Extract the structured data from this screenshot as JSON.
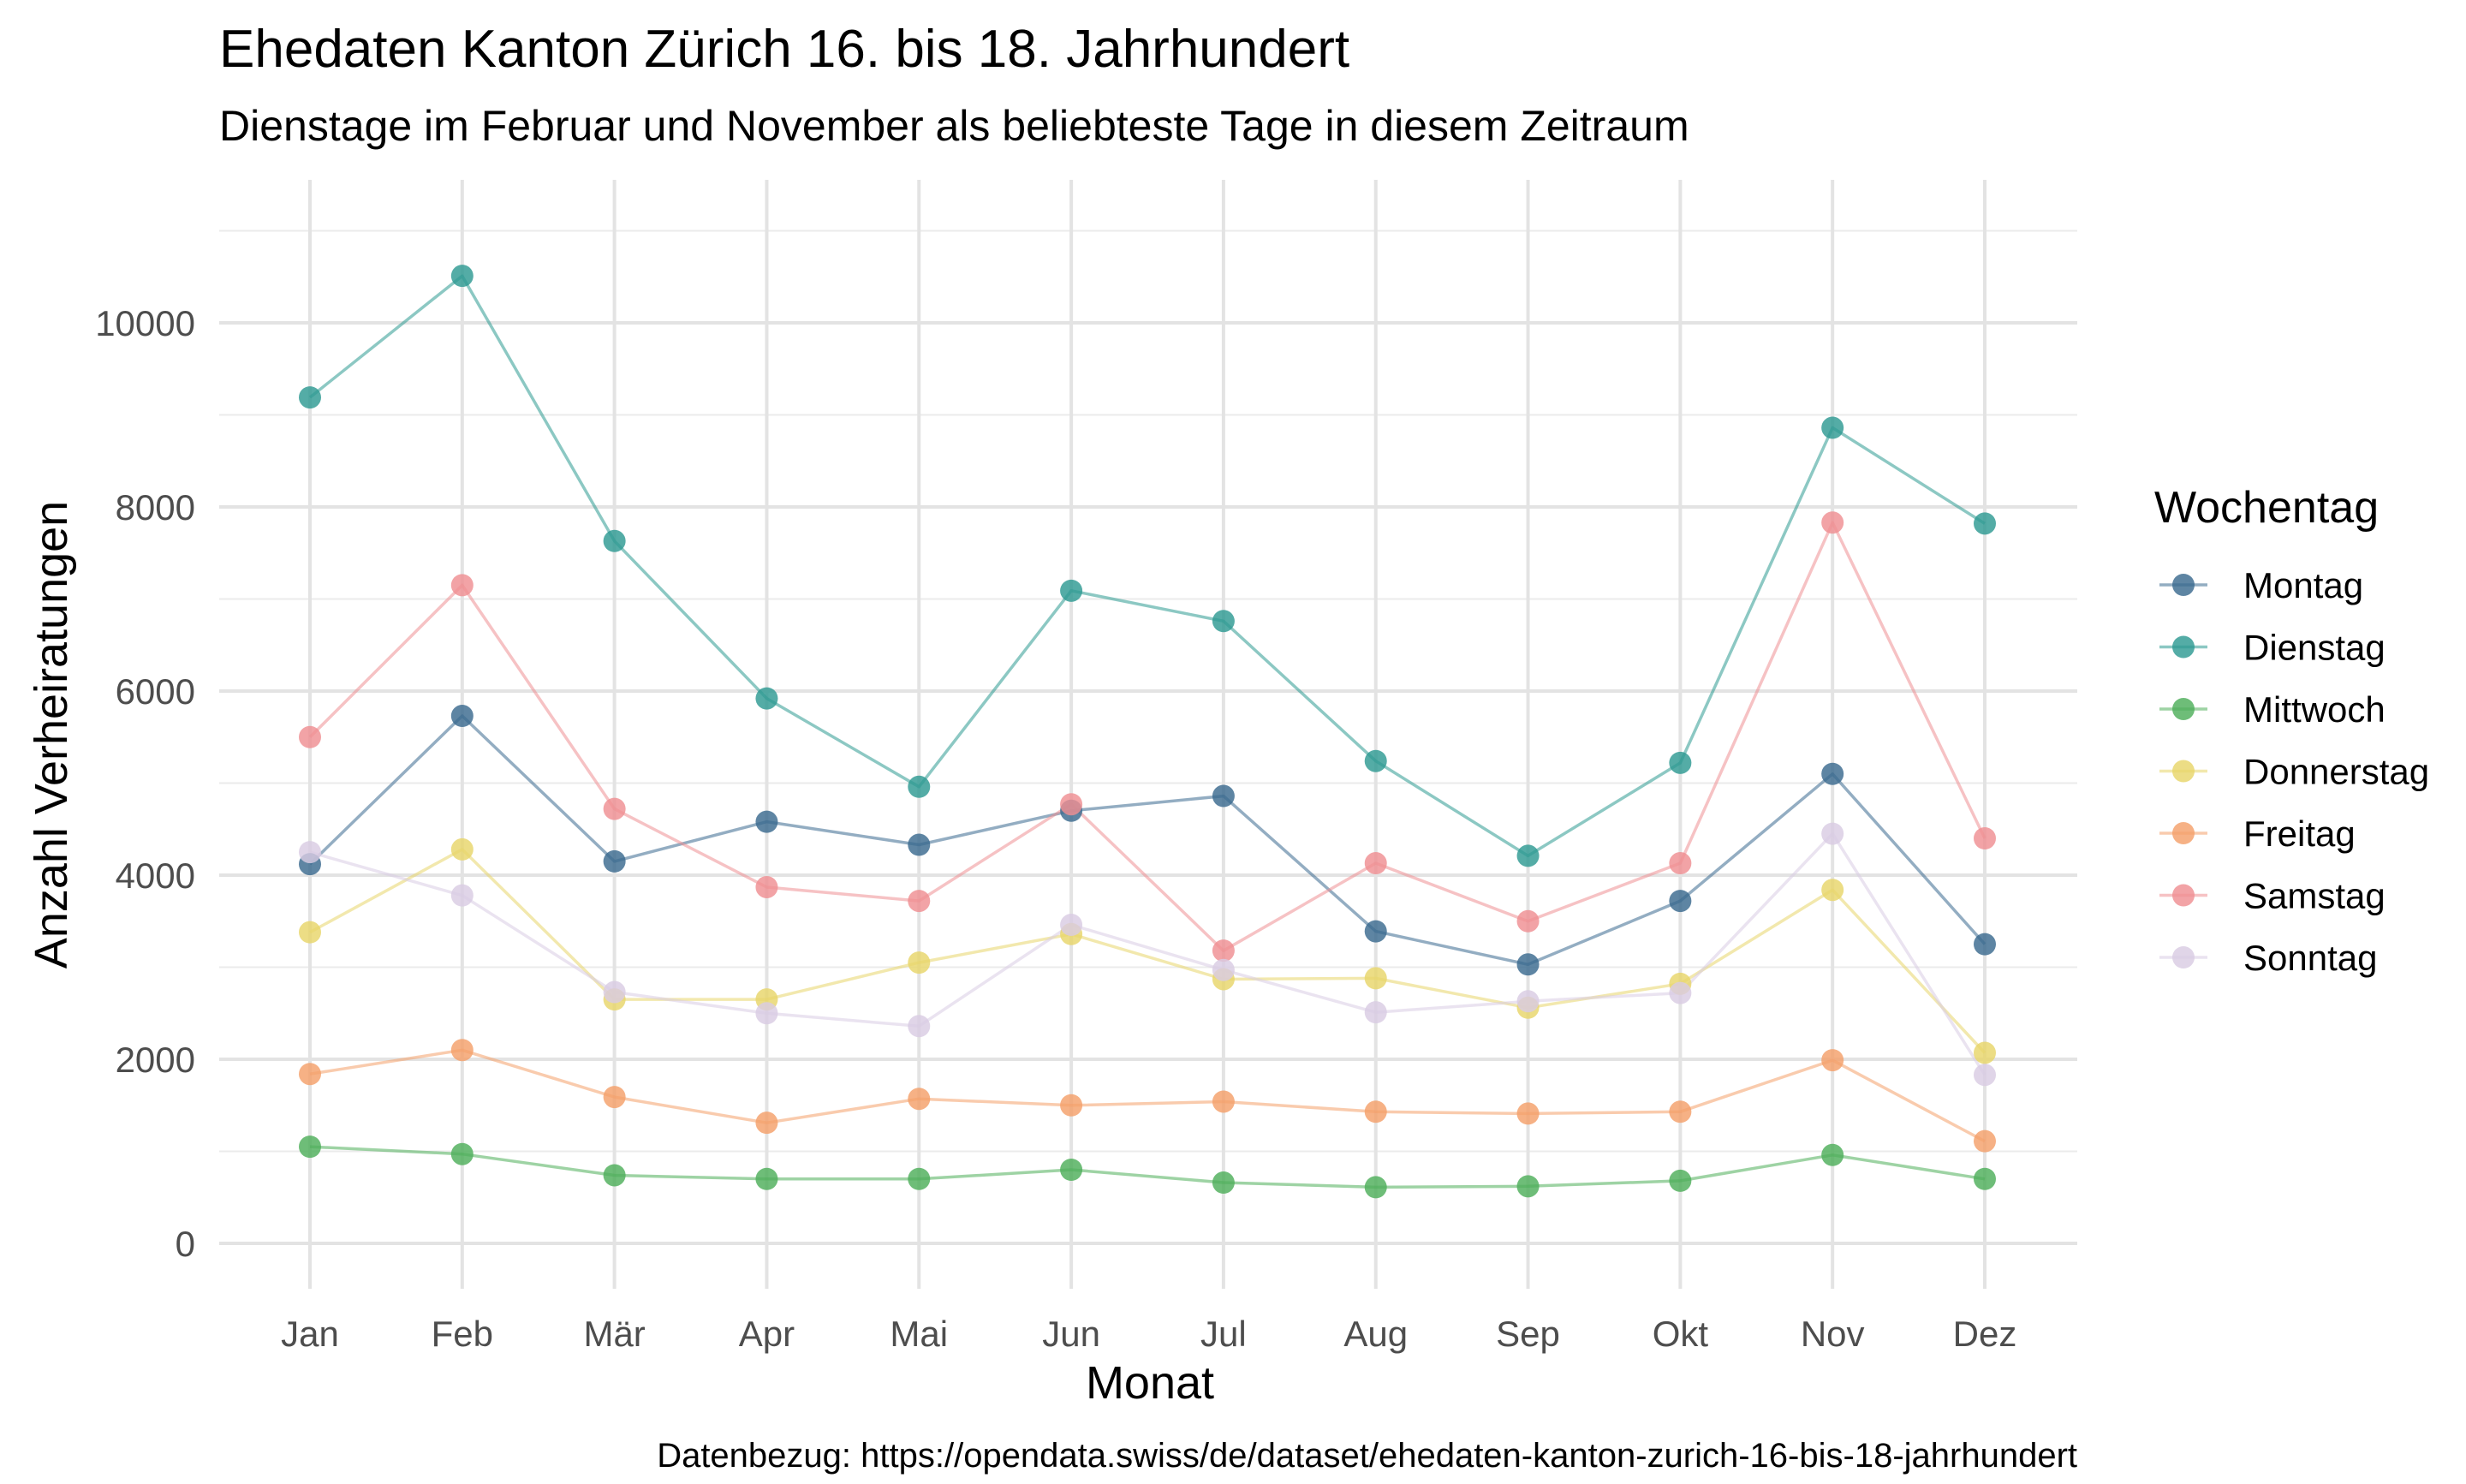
{
  "chart_data": {
    "type": "line",
    "title": "Ehedaten Kanton Zürich 16. bis 18. Jahrhundert",
    "subtitle": "Dienstage im Februar und November als beliebteste Tage in diesem Zeitraum",
    "xlabel": "Monat",
    "ylabel": "Anzahl Verheiratungen",
    "caption": "Datenbezug: https://opendata.swiss/de/dataset/ehedaten-kanton-zurich-16-bis-18-jahrhundert",
    "legend_title": "Wochentag",
    "legend_position": "right",
    "grid": true,
    "ylim": [
      -400,
      11100
    ],
    "y_ticks": [
      0,
      2000,
      4000,
      6000,
      8000,
      10000
    ],
    "y_tick_labels": [
      "0",
      "2000",
      "4000",
      "6000",
      "8000",
      "10000"
    ],
    "categories": [
      "Jan",
      "Feb",
      "Mär",
      "Apr",
      "Mai",
      "Jun",
      "Jul",
      "Aug",
      "Sep",
      "Okt",
      "Nov",
      "Dez"
    ],
    "series": [
      {
        "name": "Montag",
        "color": "#3b6a8f",
        "values": [
          4120,
          5730,
          4150,
          4580,
          4330,
          4700,
          4860,
          3390,
          3030,
          3720,
          5100,
          3250
        ]
      },
      {
        "name": "Dienstag",
        "color": "#2e9a92",
        "values": [
          9190,
          10510,
          7630,
          5920,
          4960,
          7090,
          6760,
          5240,
          4210,
          5220,
          8860,
          7820
        ]
      },
      {
        "name": "Mittwoch",
        "color": "#4eaf5a",
        "values": [
          1050,
          970,
          740,
          700,
          700,
          800,
          660,
          610,
          620,
          680,
          960,
          700
        ]
      },
      {
        "name": "Donnerstag",
        "color": "#e8d66a",
        "values": [
          3380,
          4280,
          2650,
          2650,
          3050,
          3360,
          2870,
          2880,
          2560,
          2820,
          3840,
          2070
        ]
      },
      {
        "name": "Freitag",
        "color": "#f4a06a",
        "values": [
          1840,
          2100,
          1590,
          1310,
          1570,
          1500,
          1540,
          1430,
          1410,
          1430,
          1990,
          1110
        ]
      },
      {
        "name": "Samstag",
        "color": "#ef8f93",
        "values": [
          5500,
          7150,
          4720,
          3870,
          3720,
          4770,
          3180,
          4130,
          3500,
          4130,
          7830,
          4400
        ]
      },
      {
        "name": "Sonntag",
        "color": "#d9cce3",
        "values": [
          4250,
          3780,
          2730,
          2500,
          2360,
          3460,
          2970,
          2510,
          2630,
          2720,
          4450,
          1830
        ]
      }
    ]
  }
}
